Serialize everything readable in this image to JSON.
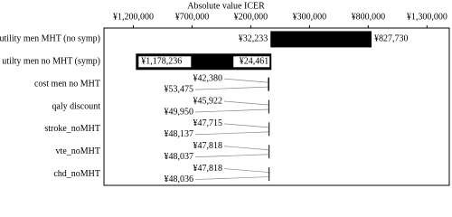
{
  "chart_data": {
    "type": "tornado",
    "title": "Absolute value ICER",
    "categories": [
      "utility men MHT (no symp)",
      "utilty men no MHT (symp)",
      "cost men no MHT",
      "qaly discount",
      "stroke_noMHT",
      "vte_noMHT",
      "chd_noMHT"
    ],
    "series": [
      {
        "color": "#000000",
        "values": [
          -32233,
          -1178236,
          -53475,
          -49950,
          -48137,
          -48037,
          -48036
        ],
        "value_labels": [
          "¥32,233",
          "¥1,178,236",
          "¥53,475",
          "¥49,950",
          "¥48,137",
          "¥48,037",
          "¥48,036"
        ]
      },
      {
        "color": "#000000",
        "values": [
          827730,
          -24461,
          -42380,
          -45922,
          -47715,
          -47818,
          -47818
        ],
        "value_labels": [
          "¥827,730",
          "¥24,461",
          "¥42,380",
          "¥45,922",
          "¥47,715",
          "¥47,818",
          "¥47,818"
        ]
      }
    ],
    "xlim": [
      -1450000,
      1490000
    ],
    "xticks": [
      {
        "value": -1200000,
        "label": "¥1,200,000"
      },
      {
        "value": -700000,
        "label": "¥700,000"
      },
      {
        "value": -200000,
        "label": "¥200,000"
      },
      {
        "value": 300000,
        "label": "¥300,000"
      },
      {
        "value": 800000,
        "label": "¥800,000"
      },
      {
        "value": 1300000,
        "label": "¥1,300,000"
      }
    ]
  }
}
